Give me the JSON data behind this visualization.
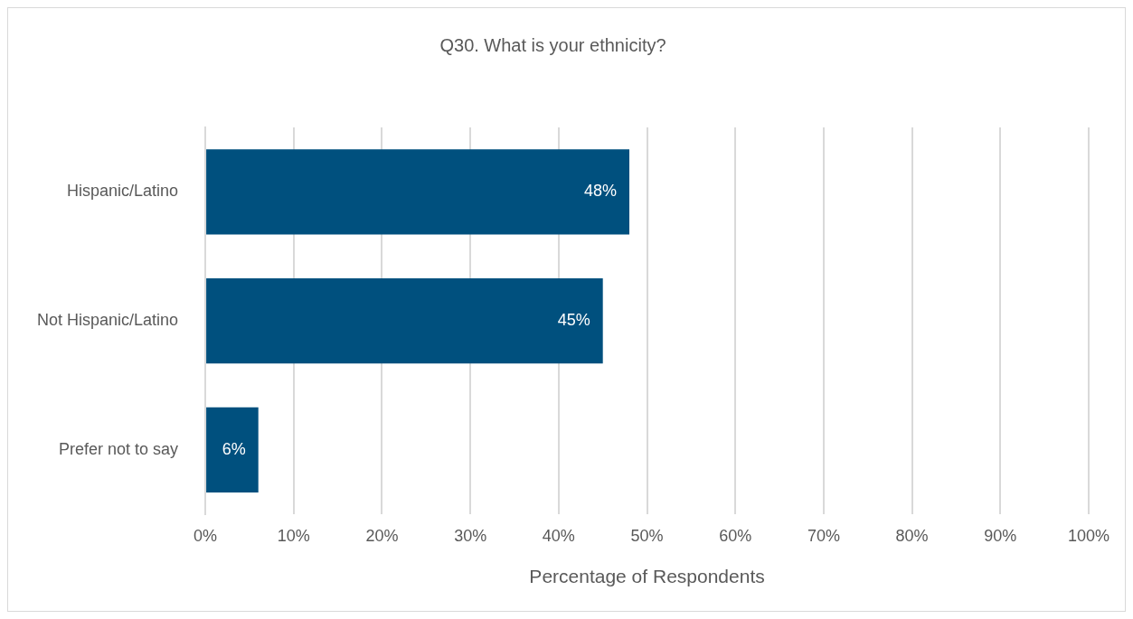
{
  "chart_data": {
    "type": "bar",
    "orientation": "horizontal",
    "title": "Q30. What is your ethnicity?",
    "xlabel": "Percentage of Respondents",
    "categories": [
      "Hispanic/Latino",
      "Not Hispanic/Latino",
      "Prefer not to say"
    ],
    "values": [
      48,
      45,
      6
    ],
    "value_labels": [
      "48%",
      "45%",
      "6%"
    ],
    "color": "#00507e",
    "xlim": [
      0,
      100
    ],
    "xticks": [
      {
        "value": 0,
        "label": "0%"
      },
      {
        "value": 10,
        "label": "10%"
      },
      {
        "value": 20,
        "label": "20%"
      },
      {
        "value": 30,
        "label": "30%"
      },
      {
        "value": 40,
        "label": "40%"
      },
      {
        "value": 50,
        "label": "50%"
      },
      {
        "value": 60,
        "label": "60%"
      },
      {
        "value": 70,
        "label": "70%"
      },
      {
        "value": 80,
        "label": "80%"
      },
      {
        "value": 90,
        "label": "90%"
      },
      {
        "value": 100,
        "label": "100%"
      }
    ],
    "grid": "x"
  }
}
